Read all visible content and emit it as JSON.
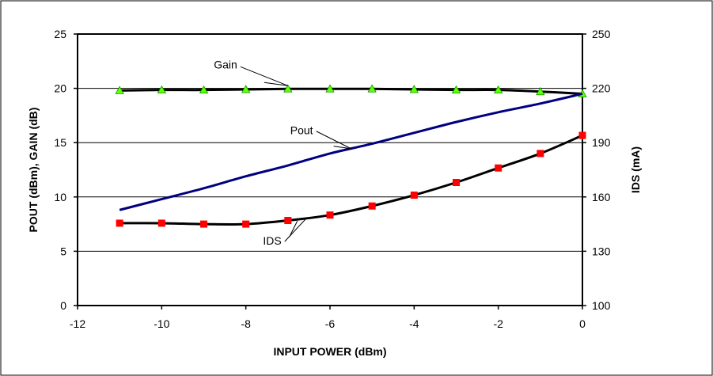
{
  "chart_data": {
    "type": "line",
    "title": "",
    "xlabel": "INPUT POWER (dBm)",
    "ylabel": "POUT (dBm), GAIN (dB)",
    "y2label": "IDS (mA)",
    "xlim": [
      -12,
      0
    ],
    "ylim": [
      0,
      25
    ],
    "y2lim": [
      100,
      250
    ],
    "xticks": [
      "-12",
      "-10",
      "-8",
      "-6",
      "-4",
      "-2",
      "0"
    ],
    "yticks": [
      "0",
      "5",
      "10",
      "15",
      "20",
      "25"
    ],
    "y2ticks": [
      "100",
      "130",
      "160",
      "190",
      "220",
      "250"
    ],
    "grid": "horizontal",
    "series": [
      {
        "name": "Gain",
        "axis": "left",
        "color": "#000000",
        "marker": "triangle",
        "marker_color": "#66ff00",
        "x": [
          -11,
          -10,
          -9,
          -8,
          -7,
          -6,
          -5,
          -4,
          -3,
          -2,
          -1,
          0
        ],
        "values": [
          19.8,
          19.85,
          19.85,
          19.9,
          19.95,
          19.95,
          19.95,
          19.9,
          19.85,
          19.85,
          19.7,
          19.5
        ]
      },
      {
        "name": "Pout",
        "axis": "left",
        "color": "#000080",
        "marker": "none",
        "x": [
          -11,
          -10,
          -9,
          -8,
          -7,
          -6,
          -5,
          -4,
          -3,
          -2,
          -1,
          0
        ],
        "values": [
          8.8,
          9.8,
          10.8,
          11.9,
          12.9,
          14.0,
          14.9,
          15.9,
          16.9,
          17.8,
          18.6,
          19.5
        ]
      },
      {
        "name": "IDS",
        "axis": "right",
        "color": "#000000",
        "marker": "square",
        "marker_color": "#ff0000",
        "x": [
          -11,
          -10,
          -9,
          -8,
          -7,
          -6,
          -5,
          -4,
          -3,
          -2,
          -1,
          0
        ],
        "values": [
          145.5,
          145.5,
          145,
          145,
          147,
          150,
          155,
          161,
          168,
          176,
          184,
          194
        ]
      }
    ],
    "annotations": [
      {
        "text": "Gain",
        "series": "Gain"
      },
      {
        "text": "Pout",
        "series": "Pout"
      },
      {
        "text": "IDS",
        "series": "IDS"
      }
    ]
  }
}
